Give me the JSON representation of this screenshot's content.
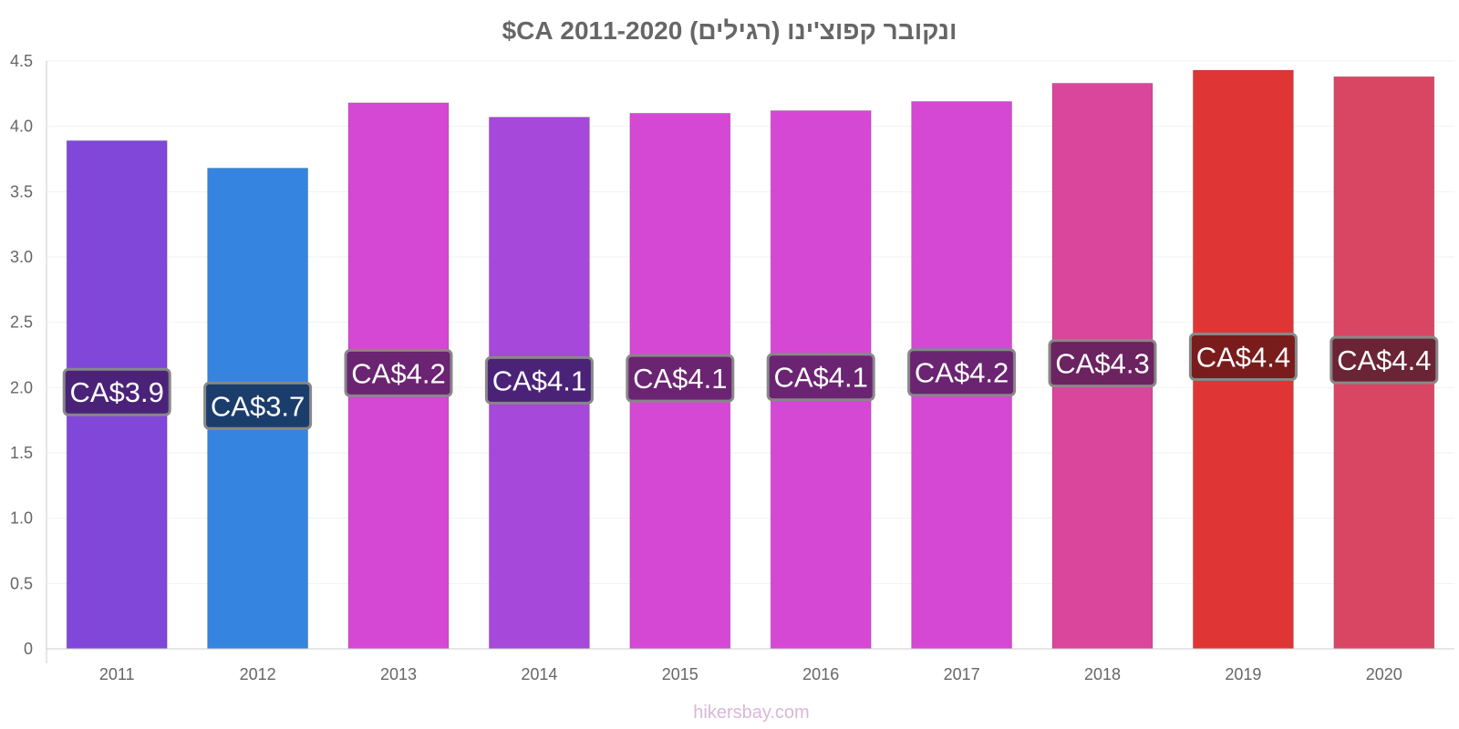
{
  "chart_data": {
    "type": "bar",
    "title": "ונקובר קפוצ'ינו (רגילים) 2011-2020 CA$",
    "xlabel": "",
    "ylabel": "",
    "ylim": [
      0,
      4.5
    ],
    "yticks": [
      "0",
      "0.5",
      "1.0",
      "1.5",
      "2.0",
      "2.5",
      "3.0",
      "3.5",
      "4.0",
      "4.5"
    ],
    "categories": [
      "2011",
      "2012",
      "2013",
      "2014",
      "2015",
      "2016",
      "2017",
      "2018",
      "2019",
      "2020"
    ],
    "values": [
      3.89,
      3.68,
      4.18,
      4.07,
      4.1,
      4.12,
      4.19,
      4.33,
      4.43,
      4.38
    ],
    "data_labels": [
      "CA$3.9",
      "CA$3.7",
      "CA$4.2",
      "CA$4.1",
      "CA$4.1",
      "CA$4.1",
      "CA$4.2",
      "CA$4.3",
      "CA$4.4",
      "CA$4.4"
    ],
    "bar_colors": [
      "#8047d9",
      "#3584e0",
      "#d548d4",
      "#a648d9",
      "#d548d4",
      "#d548d4",
      "#d548d4",
      "#d9469c",
      "#e03535",
      "#d94664"
    ],
    "label_bg_colors": [
      "#4a2378",
      "#1b3d6b",
      "#6b2472",
      "#4a2378",
      "#6b2472",
      "#6b2472",
      "#6b2472",
      "#6b2460",
      "#7a1c1c",
      "#6b2436"
    ],
    "grid": true,
    "legend": "none"
  },
  "footer": {
    "source": "hikersbay.com"
  }
}
